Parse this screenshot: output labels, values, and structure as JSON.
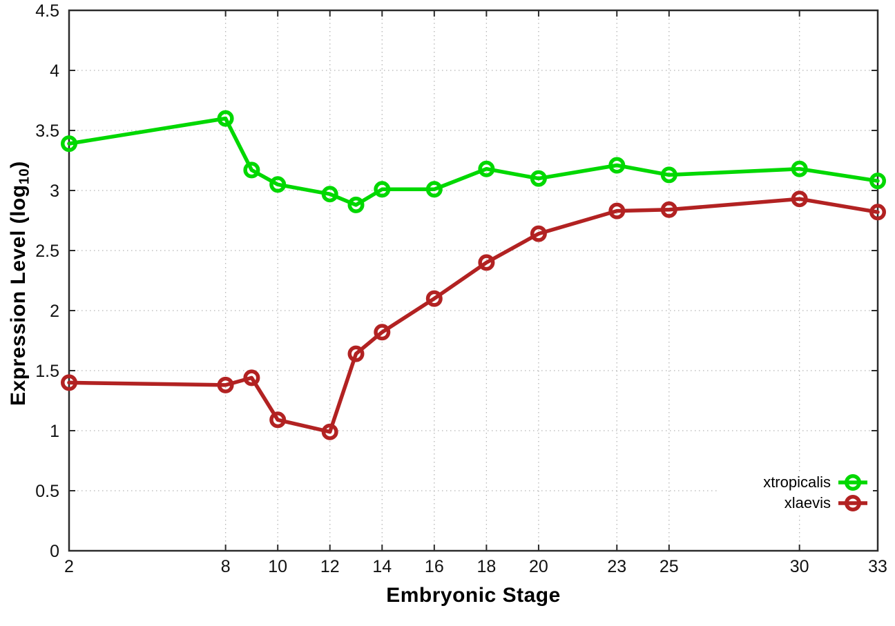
{
  "chart_data": {
    "type": "line",
    "title": "",
    "xlabel": "Embryonic Stage",
    "ylabel": "Expression Level (log10)",
    "ylabel_parts": {
      "main": "Expression Level (log",
      "sub": "10",
      "close": ")"
    },
    "x": [
      2,
      8,
      9,
      10,
      12,
      13,
      14,
      16,
      18,
      20,
      23,
      25,
      30,
      33
    ],
    "series": [
      {
        "name": "xtropicalis",
        "color": "#00d800",
        "values": [
          3.39,
          3.6,
          3.17,
          3.05,
          2.97,
          2.88,
          3.01,
          3.01,
          3.18,
          3.1,
          3.21,
          3.13,
          3.18,
          3.08
        ]
      },
      {
        "name": "xlaevis",
        "color": "#b22222",
        "values": [
          1.4,
          1.38,
          1.44,
          1.09,
          0.99,
          1.64,
          1.82,
          2.1,
          2.4,
          2.64,
          2.83,
          2.84,
          2.93,
          2.82
        ]
      }
    ],
    "xlim": [
      2,
      33
    ],
    "ylim": [
      0,
      4.5
    ],
    "xticks": [
      2,
      8,
      10,
      12,
      14,
      16,
      18,
      20,
      23,
      25,
      30,
      33
    ],
    "xtick_labels": [
      "2",
      "8",
      "10",
      "12",
      "14",
      "16",
      "18",
      "20",
      "23",
      "25",
      "30",
      "33"
    ],
    "yticks": [
      0,
      0.5,
      1,
      1.5,
      2,
      2.5,
      3,
      3.5,
      4,
      4.5
    ],
    "ytick_labels": [
      "0",
      "0.5",
      "1",
      "1.5",
      "2",
      "2.5",
      "3",
      "3.5",
      "4",
      "4.5"
    ],
    "grid": true,
    "grid_style": "dotted",
    "grid_color": "#b5b5b5",
    "frame_color": "#2b2b2b",
    "tick_label_color": "#111111",
    "marker": "open-circle",
    "legend_position": "bottom-right-inside",
    "legend_entries": [
      "xtropicalis",
      "xlaevis"
    ]
  }
}
